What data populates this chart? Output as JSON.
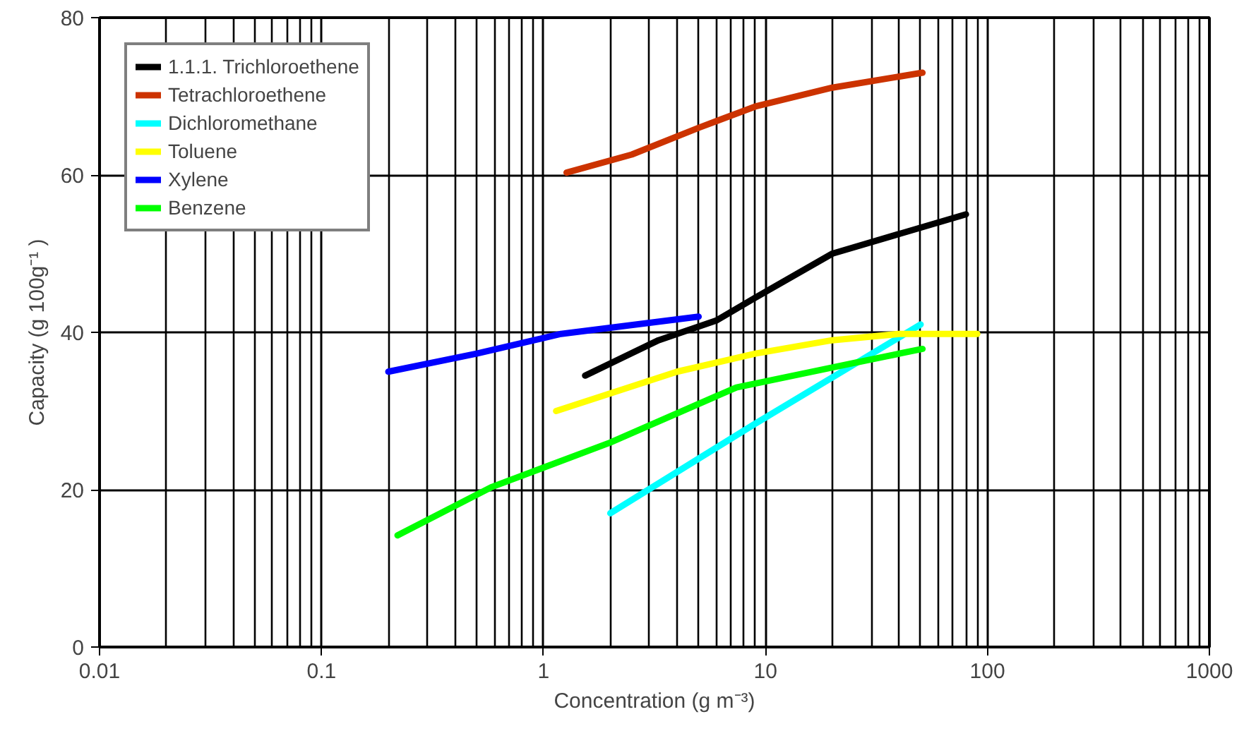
{
  "chart_data": {
    "type": "line",
    "xlabel": "Concentration (g m⁻³)",
    "ylabel": "Capacity (g 100g⁻¹ )",
    "log": "x",
    "grid": true,
    "legend": "top left",
    "marker": "none",
    "line_style": "solid",
    "xlim": [
      0.01,
      1000
    ],
    "ylim": [
      0,
      80
    ],
    "xticks": [
      0.01,
      0.1,
      1,
      10,
      100,
      1000
    ],
    "yticks": [
      0,
      20,
      40,
      60,
      80
    ],
    "series": [
      {
        "name": "1.1.1. Trichloroethene",
        "color": "#000000",
        "x": [
          1.54,
          3.3,
          6,
          9,
          20,
          80
        ],
        "values": [
          34.5,
          39,
          41.5,
          44.4,
          50,
          55
        ]
      },
      {
        "name": "Tetrachloroethene",
        "color": "#cc3300",
        "x": [
          1.27,
          2.5,
          5,
          9,
          20,
          51
        ],
        "values": [
          60.3,
          62.6,
          66,
          68.7,
          71.1,
          73
        ]
      },
      {
        "name": "Dichloromethane",
        "color": "#00ffff",
        "x": [
          2,
          9,
          50
        ],
        "values": [
          17,
          28.4,
          41
        ]
      },
      {
        "name": "Toluene",
        "color": "#ffff00",
        "x": [
          1.14,
          4,
          9,
          20,
          40,
          90
        ],
        "values": [
          30,
          35,
          37.3,
          39,
          39.8,
          39.8
        ]
      },
      {
        "name": "Xylene",
        "color": "#0000ff",
        "x": [
          0.2,
          0.5,
          1.2,
          5
        ],
        "values": [
          35,
          37.3,
          39.8,
          42
        ]
      },
      {
        "name": "Benzene",
        "color": "#00ff00",
        "x": [
          0.22,
          0.58,
          2,
          7.4,
          24,
          51
        ],
        "values": [
          14.2,
          20.3,
          26,
          33,
          36,
          37.9
        ]
      }
    ]
  }
}
